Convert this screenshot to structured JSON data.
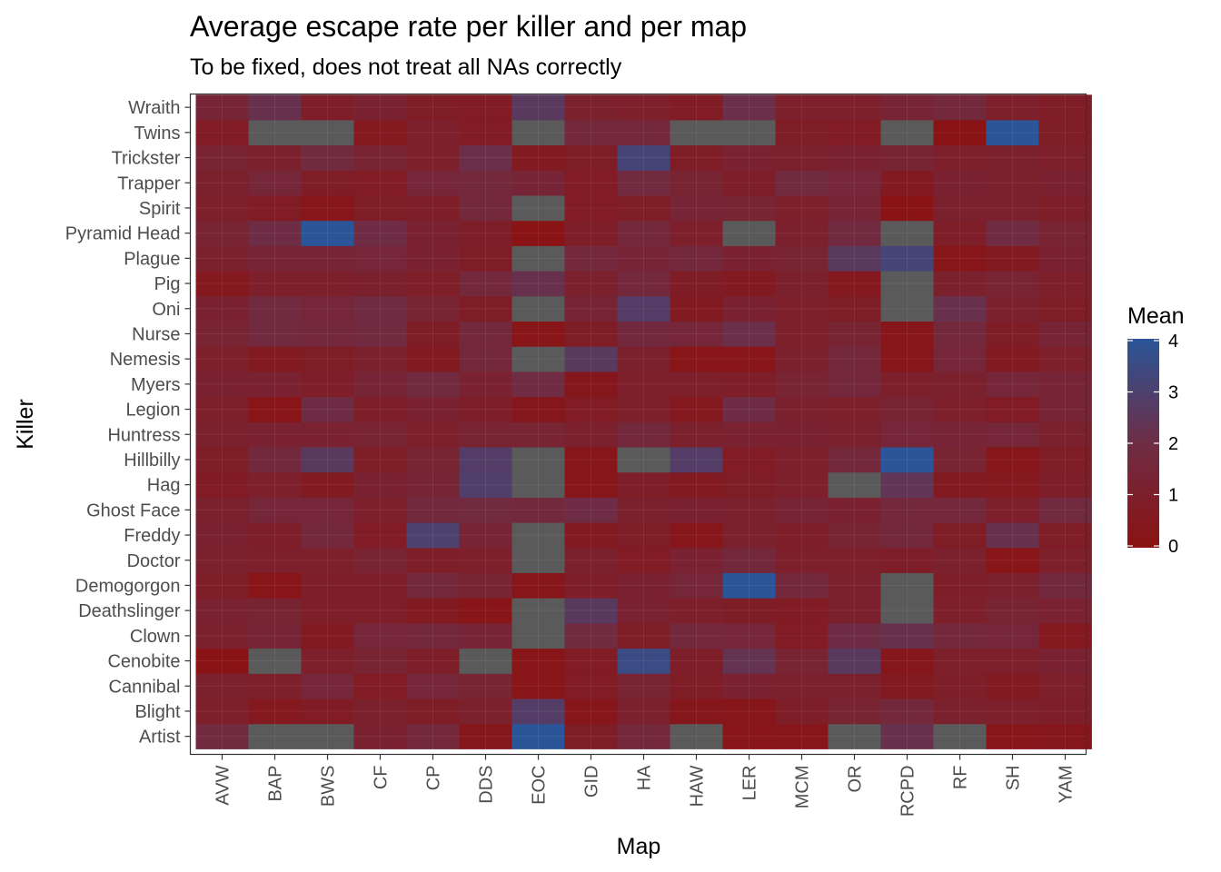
{
  "chart_data": {
    "type": "heatmap",
    "title": "Average escape rate per killer and per map",
    "subtitle": "To be fixed, does not treat all NAs correctly",
    "xlabel": "Map",
    "ylabel": "Killer",
    "x_categories": [
      "AVW",
      "BAP",
      "BWS",
      "CF",
      "CP",
      "DDS",
      "EOC",
      "GID",
      "HA",
      "HAW",
      "LER",
      "MCM",
      "OR",
      "RCPD",
      "RF",
      "SH",
      "YAM"
    ],
    "y_categories": [
      "Artist",
      "Blight",
      "Cannibal",
      "Cenobite",
      "Clown",
      "Deathslinger",
      "Demogorgon",
      "Doctor",
      "Freddy",
      "Ghost Face",
      "Hag",
      "Hillbilly",
      "Huntress",
      "Legion",
      "Myers",
      "Nemesis",
      "Nurse",
      "Oni",
      "Pig",
      "Plague",
      "Pyramid Head",
      "Spirit",
      "Trapper",
      "Trickster",
      "Twins",
      "Wraith"
    ],
    "values": [
      [
        1.8,
        null,
        null,
        1.2,
        1.6,
        0.4,
        4.0,
        0.8,
        1.6,
        null,
        0.2,
        0.3,
        null,
        2.2,
        null,
        0.3,
        0.4
      ],
      [
        1.0,
        0.5,
        0.7,
        1.1,
        0.8,
        1.1,
        2.8,
        0.3,
        1.1,
        0.4,
        0.3,
        0.9,
        1.3,
        1.6,
        1.1,
        1.0,
        0.9
      ],
      [
        1.1,
        1.0,
        1.5,
        0.7,
        1.5,
        1.3,
        0.2,
        0.7,
        1.3,
        0.8,
        1.2,
        1.1,
        1.1,
        0.6,
        0.9,
        0.6,
        1.0
      ],
      [
        0.1,
        null,
        1.0,
        1.3,
        0.9,
        null,
        0.2,
        0.7,
        3.5,
        0.9,
        2.3,
        1.3,
        2.6,
        0.4,
        1.0,
        1.0,
        1.2
      ],
      [
        1.1,
        1.4,
        0.6,
        1.5,
        1.6,
        1.4,
        null,
        1.8,
        0.8,
        1.6,
        1.5,
        0.7,
        2.0,
        2.2,
        1.6,
        1.5,
        0.5
      ],
      [
        1.2,
        1.3,
        0.9,
        0.9,
        0.6,
        0.2,
        null,
        2.6,
        1.2,
        1.0,
        0.8,
        0.7,
        1.1,
        null,
        1.0,
        1.3,
        1.2
      ],
      [
        0.8,
        0.2,
        0.9,
        0.9,
        1.6,
        1.3,
        0.3,
        0.9,
        1.2,
        1.5,
        4.0,
        1.6,
        1.1,
        null,
        0.9,
        1.1,
        1.7
      ],
      [
        1.1,
        1.0,
        1.0,
        1.3,
        0.9,
        1.0,
        null,
        1.1,
        0.7,
        1.2,
        1.6,
        1.0,
        1.0,
        0.9,
        1.1,
        0.2,
        1.0
      ],
      [
        1.2,
        0.9,
        1.6,
        0.7,
        3.0,
        1.4,
        null,
        0.6,
        0.8,
        0.3,
        1.1,
        0.9,
        1.3,
        1.6,
        0.8,
        2.2,
        0.8
      ],
      [
        1.1,
        1.5,
        1.5,
        1.0,
        1.7,
        1.8,
        1.7,
        2.0,
        1.1,
        1.2,
        1.1,
        1.4,
        1.2,
        1.6,
        1.6,
        1.0,
        1.8
      ],
      [
        0.7,
        1.0,
        0.6,
        1.2,
        1.4,
        2.9,
        null,
        0.3,
        0.9,
        0.6,
        0.8,
        1.0,
        null,
        2.4,
        0.6,
        0.5,
        0.9
      ],
      [
        0.8,
        1.7,
        2.6,
        0.8,
        1.3,
        2.8,
        null,
        0.3,
        null,
        2.8,
        0.7,
        1.0,
        1.6,
        4.0,
        1.3,
        0.3,
        0.8
      ],
      [
        1.1,
        1.2,
        1.2,
        1.3,
        1.0,
        1.3,
        1.3,
        1.1,
        1.6,
        1.1,
        1.2,
        1.2,
        1.1,
        1.5,
        1.4,
        1.5,
        1.1
      ],
      [
        1.0,
        0.2,
        2.0,
        0.9,
        1.2,
        0.9,
        0.4,
        0.7,
        1.0,
        0.5,
        2.0,
        1.1,
        1.0,
        1.3,
        1.0,
        0.7,
        1.4
      ],
      [
        1.2,
        1.2,
        0.9,
        1.4,
        1.8,
        1.2,
        1.9,
        0.4,
        1.0,
        1.0,
        0.9,
        1.3,
        1.6,
        1.0,
        1.1,
        1.5,
        1.4
      ],
      [
        1.0,
        0.6,
        0.8,
        1.1,
        0.6,
        1.6,
        null,
        2.6,
        1.1,
        0.2,
        0.2,
        1.1,
        1.6,
        0.3,
        1.5,
        0.6,
        1.0
      ],
      [
        1.3,
        1.8,
        1.6,
        1.8,
        0.8,
        1.6,
        0.2,
        0.8,
        1.7,
        1.5,
        2.1,
        1.0,
        1.3,
        0.3,
        1.6,
        0.8,
        1.4
      ],
      [
        1.2,
        1.8,
        1.5,
        1.9,
        1.3,
        0.8,
        null,
        1.4,
        2.8,
        0.6,
        1.2,
        1.0,
        0.8,
        null,
        2.2,
        1.1,
        0.8
      ],
      [
        0.5,
        1.0,
        1.0,
        1.1,
        0.9,
        1.6,
        2.2,
        1.1,
        1.6,
        0.8,
        0.6,
        1.1,
        0.5,
        null,
        1.1,
        1.3,
        1.0
      ],
      [
        1.1,
        1.4,
        1.4,
        1.5,
        1.2,
        0.8,
        null,
        1.6,
        1.4,
        1.6,
        1.2,
        1.3,
        2.6,
        3.2,
        0.3,
        0.6,
        1.2
      ],
      [
        1.3,
        2.0,
        4.0,
        2.0,
        1.2,
        0.9,
        0.1,
        0.9,
        1.6,
        1.0,
        null,
        1.1,
        1.8,
        null,
        0.9,
        1.9,
        1.3
      ],
      [
        1.0,
        0.7,
        0.3,
        0.8,
        0.9,
        1.6,
        null,
        0.7,
        0.8,
        1.4,
        1.3,
        1.0,
        1.4,
        0.1,
        1.1,
        1.1,
        0.9
      ],
      [
        1.1,
        1.5,
        0.8,
        0.7,
        1.5,
        1.6,
        1.4,
        0.7,
        1.8,
        1.3,
        0.9,
        1.8,
        1.5,
        0.6,
        1.2,
        1.1,
        1.2
      ],
      [
        1.3,
        1.1,
        1.8,
        1.3,
        1.0,
        2.1,
        0.6,
        0.8,
        3.2,
        0.8,
        1.2,
        1.1,
        1.2,
        1.3,
        1.0,
        1.1,
        1.0
      ],
      [
        0.7,
        null,
        null,
        0.5,
        1.0,
        0.7,
        null,
        1.6,
        1.6,
        null,
        null,
        0.8,
        0.7,
        null,
        0.1,
        4.0,
        0.8
      ],
      [
        1.4,
        2.2,
        0.9,
        1.2,
        0.8,
        0.7,
        2.6,
        1.1,
        1.0,
        0.7,
        2.1,
        1.0,
        1.0,
        1.4,
        1.6,
        1.0,
        0.8
      ]
    ],
    "x_tick_labels": [
      "AVW",
      "BAP",
      "BWS",
      "CF",
      "CP",
      "DDS",
      "EOC",
      "GID",
      "HA",
      "HAW",
      "LER",
      "MCM",
      "OR",
      "RCPD",
      "RF",
      "SH",
      "YAM"
    ],
    "y_tick_labels": [
      "Artist",
      "Blight",
      "Cannibal",
      "Cenobite",
      "Clown",
      "Deathslinger",
      "Demogorgon",
      "Doctor",
      "Freddy",
      "Ghost Face",
      "Hag",
      "Hillbilly",
      "Huntress",
      "Legion",
      "Myers",
      "Nemesis",
      "Nurse",
      "Oni",
      "Pig",
      "Plague",
      "Pyramid Head",
      "Spirit",
      "Trapper",
      "Trickster",
      "Twins",
      "Wraith"
    ],
    "legend": {
      "title": "Mean",
      "ticks": [
        0,
        1,
        2,
        3,
        4
      ],
      "range": [
        0,
        4
      ],
      "low_color": "#8b1212",
      "mid_color": "#6e2d45",
      "high_color": "#2a5598",
      "na_color": "#5a5a5a",
      "position": "right"
    },
    "grid": true
  }
}
